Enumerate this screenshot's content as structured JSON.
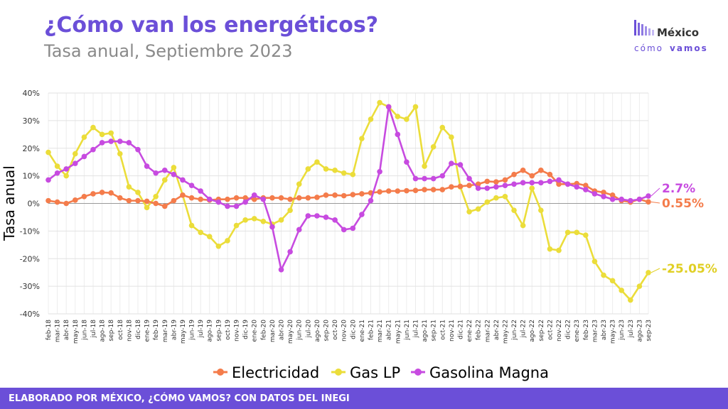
{
  "header": {
    "title": "¿Cómo van los energéticos?",
    "subtitle": "Tasa anual, Septiembre 2023"
  },
  "logo": {
    "line1": "México",
    "line2a": "cómo",
    "line2b": "vamos"
  },
  "footer": {
    "text": "ELABORADO POR MÉXICO, ¿CÓMO VAMOS? CON DATOS DEL INEGI"
  },
  "colors": {
    "accent": "#6b4fd8",
    "electricidad": "#f47c4b",
    "gas_lp": "#ebdd3a",
    "gasolina": "#c74be0"
  },
  "chart_data": {
    "type": "line",
    "ylabel": "Tasa anual",
    "ylim": [
      -40,
      40
    ],
    "yticks": [
      -40,
      -30,
      -20,
      -10,
      0,
      10,
      20,
      30,
      40
    ],
    "ytick_labels": [
      "-40%",
      "-30%",
      "-20%",
      "-10%",
      "0%",
      "10%",
      "20%",
      "30%",
      "40%"
    ],
    "grid": true,
    "legend": "bottom",
    "x": [
      "feb-18",
      "mar-18",
      "abr-18",
      "may-18",
      "jun-18",
      "jul-18",
      "ago-18",
      "sep-18",
      "oct-18",
      "nov-18",
      "dic-18",
      "ene-19",
      "feb-19",
      "mar-19",
      "abr-19",
      "may-19",
      "jun-19",
      "jul-19",
      "ago-19",
      "sep-19",
      "oct-19",
      "nov-19",
      "dic-19",
      "ene-20",
      "feb-20",
      "mar-20",
      "abr-20",
      "may-20",
      "jun-20",
      "jul-20",
      "ago-20",
      "sep-20",
      "oct-20",
      "nov-20",
      "dic-20",
      "ene-21",
      "feb-21",
      "mar-21",
      "abr-21",
      "may-21",
      "jun-21",
      "jul-21",
      "ago-21",
      "sep-21",
      "oct-21",
      "nov-21",
      "dic-21",
      "ene-22",
      "feb-22",
      "mar-22",
      "abr-22",
      "may-22",
      "jun-22",
      "jul-22",
      "ago-22",
      "sep-22",
      "oct-22",
      "nov-22",
      "dic-22",
      "ene-23",
      "feb-23",
      "mar-23",
      "abr-23",
      "may-23",
      "jun-23",
      "jul-23",
      "ago-23",
      "sep-23"
    ],
    "series": [
      {
        "name": "Electricidad",
        "color": "#f47c4b",
        "end_label": "0.55%",
        "values": [
          1.0,
          0.5,
          0.0,
          1.2,
          2.5,
          3.5,
          4.0,
          3.8,
          2.0,
          1.0,
          1.0,
          0.8,
          0.0,
          -1.0,
          1.0,
          3.0,
          2.0,
          1.5,
          1.2,
          1.5,
          1.5,
          2.0,
          2.0,
          1.5,
          2.0,
          2.0,
          2.0,
          1.5,
          2.0,
          2.0,
          2.2,
          3.0,
          3.0,
          2.8,
          3.2,
          3.5,
          3.8,
          4.2,
          4.5,
          4.5,
          4.6,
          4.7,
          5.0,
          5.0,
          5.0,
          6.0,
          6.2,
          6.5,
          7.0,
          8.0,
          7.8,
          8.5,
          10.5,
          12.0,
          10.0,
          12.0,
          10.5,
          7.0,
          7.0,
          7.2,
          6.5,
          4.5,
          4.0,
          3.0,
          1.0,
          0.5,
          1.5,
          0.55
        ]
      },
      {
        "name": "Gas LP",
        "color": "#ebdd3a",
        "end_label": "-25.05%",
        "values": [
          18.5,
          13.5,
          10.0,
          18.0,
          24.0,
          27.5,
          25.0,
          25.5,
          18.0,
          6.0,
          4.0,
          -1.5,
          2.5,
          8.5,
          13.0,
          3.0,
          -8.0,
          -10.5,
          -12.0,
          -15.5,
          -13.5,
          -8.0,
          -6.0,
          -5.5,
          -6.5,
          -7.5,
          -6.0,
          -2.5,
          7.0,
          12.5,
          15.0,
          12.5,
          12.0,
          11.0,
          10.5,
          23.5,
          30.5,
          36.5,
          35.0,
          31.5,
          30.5,
          35.0,
          13.5,
          20.5,
          27.5,
          24.0,
          6.0,
          -3.0,
          -2.0,
          0.5,
          2.0,
          2.5,
          -2.5,
          -8.0,
          5.5,
          -2.5,
          -16.5,
          -17.0,
          -10.5,
          -10.5,
          -11.5,
          -21.0,
          -26.0,
          -28.0,
          -31.5,
          -35.0,
          -30.0,
          -25.05
        ]
      },
      {
        "name": "Gasolina Magna",
        "color": "#c74be0",
        "end_label": "2.7%",
        "values": [
          8.5,
          11.0,
          12.5,
          14.5,
          17.0,
          19.5,
          22.0,
          22.5,
          22.5,
          22.0,
          19.5,
          13.5,
          11.0,
          12.0,
          10.5,
          8.5,
          6.5,
          4.5,
          1.5,
          0.5,
          -1.0,
          -1.0,
          0.5,
          3.0,
          1.5,
          -8.5,
          -24.0,
          -17.5,
          -9.5,
          -4.5,
          -4.5,
          -5.0,
          -6.0,
          -9.5,
          -9.0,
          -4.0,
          1.0,
          11.5,
          35.0,
          25.0,
          15.0,
          9.0,
          9.0,
          9.0,
          10.0,
          14.5,
          14.0,
          9.0,
          5.5,
          5.5,
          6.0,
          6.5,
          7.0,
          7.5,
          7.5,
          7.5,
          8.0,
          8.5,
          7.0,
          6.0,
          5.0,
          3.5,
          2.5,
          1.5,
          1.5,
          1.0,
          1.5,
          2.7
        ]
      }
    ]
  }
}
